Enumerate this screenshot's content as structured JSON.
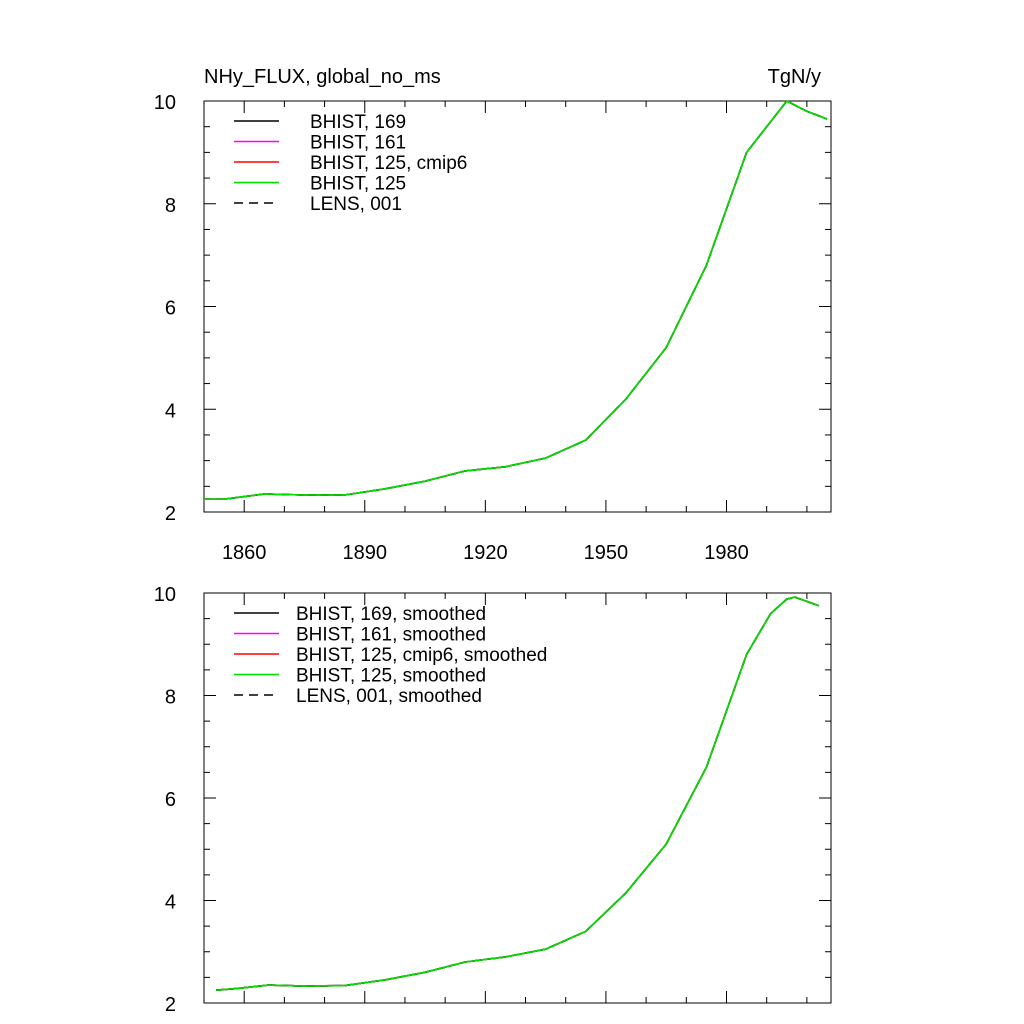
{
  "chart_data": [
    {
      "type": "line",
      "title": "NHy_FLUX, global_no_ms",
      "units": "TgN/y",
      "xlim": [
        1850,
        2006
      ],
      "ylim": [
        2,
        10
      ],
      "x_ticks": [
        1860,
        1890,
        1920,
        1950,
        1980
      ],
      "y_ticks": [
        2,
        4,
        6,
        8,
        10
      ],
      "x_tick_labels_visible": true,
      "legend": "top-left",
      "grid": false,
      "series": [
        {
          "name": "BHIST, 169",
          "color": "#000000",
          "dash": "solid"
        },
        {
          "name": "BHIST, 161",
          "color": "#ff00ff",
          "dash": "solid"
        },
        {
          "name": "BHIST, 125, cmip6",
          "color": "#ff0000",
          "dash": "solid"
        },
        {
          "name": "BHIST, 125",
          "color": "#00dd00",
          "dash": "solid"
        },
        {
          "name": "LENS, 001",
          "color": "#000000",
          "dash": "dashed"
        }
      ],
      "curve": {
        "x": [
          1850,
          1855,
          1865,
          1875,
          1885,
          1895,
          1905,
          1915,
          1925,
          1935,
          1945,
          1955,
          1965,
          1975,
          1985,
          1995,
          2000,
          2005
        ],
        "y": [
          2.25,
          2.25,
          2.35,
          2.33,
          2.33,
          2.45,
          2.6,
          2.8,
          2.88,
          3.05,
          3.4,
          4.2,
          5.2,
          6.8,
          9.0,
          10.0,
          9.8,
          9.65
        ]
      }
    },
    {
      "type": "line",
      "title": "",
      "units": "",
      "xlim": [
        1850,
        2006
      ],
      "ylim": [
        2,
        10
      ],
      "x_ticks": [
        1860,
        1890,
        1920,
        1950,
        1980
      ],
      "y_ticks": [
        2,
        4,
        6,
        8,
        10
      ],
      "x_tick_labels_visible": false,
      "legend": "top-left",
      "grid": false,
      "series": [
        {
          "name": "BHIST, 169, smoothed",
          "color": "#000000",
          "dash": "solid"
        },
        {
          "name": "BHIST, 161, smoothed",
          "color": "#ff00ff",
          "dash": "solid"
        },
        {
          "name": "BHIST, 125, cmip6, smoothed",
          "color": "#ff0000",
          "dash": "solid"
        },
        {
          "name": "BHIST, 125, smoothed",
          "color": "#00dd00",
          "dash": "solid"
        },
        {
          "name": "LENS, 001, smoothed",
          "color": "#000000",
          "dash": "dashed"
        }
      ],
      "curve": {
        "x": [
          1853,
          1858,
          1866,
          1875,
          1885,
          1895,
          1905,
          1915,
          1925,
          1935,
          1945,
          1955,
          1965,
          1975,
          1985,
          1991,
          1995,
          1997,
          2003
        ],
        "y": [
          2.25,
          2.28,
          2.35,
          2.33,
          2.34,
          2.45,
          2.6,
          2.8,
          2.9,
          3.05,
          3.4,
          4.15,
          5.1,
          6.6,
          8.8,
          9.6,
          9.88,
          9.92,
          9.75
        ]
      }
    }
  ]
}
